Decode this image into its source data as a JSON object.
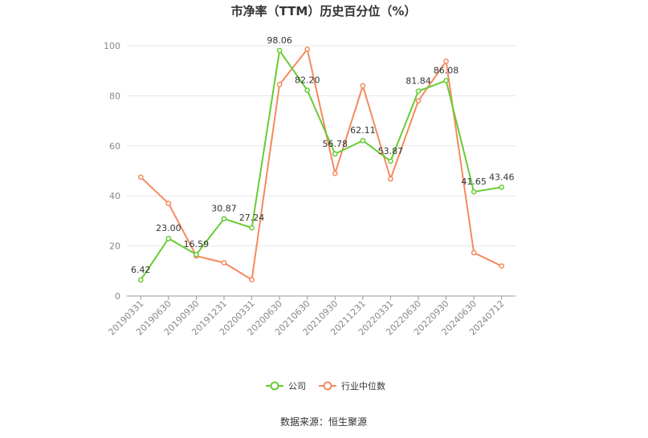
{
  "chart_data": {
    "type": "line",
    "title": "市净率（TTM）历史百分位（%）",
    "x": [
      "20190331",
      "20190630",
      "20190930",
      "20191231",
      "20200331",
      "20200630",
      "20210630",
      "20210930",
      "20211231",
      "20220331",
      "20220630",
      "20220930",
      "20240630",
      "20240712"
    ],
    "ylim": [
      0,
      100
    ],
    "yticks": [
      0,
      20,
      40,
      60,
      80,
      100
    ],
    "grid": true,
    "legend_position": "bottom-center",
    "series": [
      {
        "name": "公司",
        "color": "#66cc33",
        "values": [
          6.42,
          23.0,
          16.59,
          30.87,
          27.24,
          98.06,
          82.2,
          56.78,
          62.11,
          53.87,
          81.84,
          86.08,
          41.65,
          43.46
        ],
        "labels": [
          "6.42",
          "23.00",
          "16.59",
          "30.87",
          "27.24",
          "98.06",
          "82.20",
          "56.78",
          "62.11",
          "53.87",
          "81.84",
          "86.08",
          "41.65",
          "43.46"
        ]
      },
      {
        "name": "行业中位数",
        "color": "#f5895e",
        "values": [
          47.5,
          37.0,
          16.0,
          13.3,
          6.5,
          84.5,
          98.6,
          49.0,
          84.0,
          46.8,
          78.0,
          93.8,
          17.3,
          12.0
        ]
      }
    ]
  },
  "source": "数据来源：恒生聚源"
}
